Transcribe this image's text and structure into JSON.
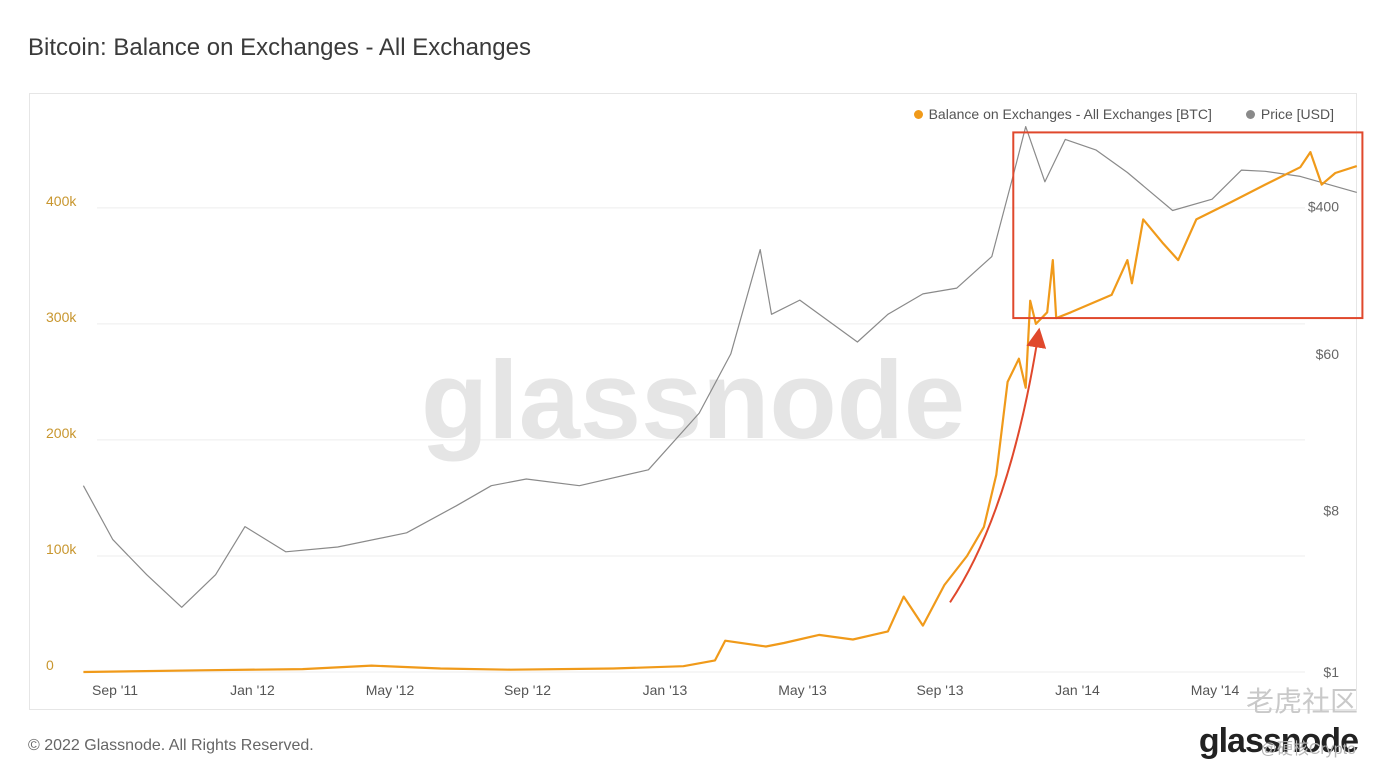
{
  "header": {
    "title": "Bitcoin: Balance on Exchanges - All Exchanges"
  },
  "footer": {
    "copyright": "© 2022 Glassnode. All Rights Reserved.",
    "brand": "glassnode"
  },
  "watermark": {
    "text": "glassnode",
    "overlay": "老虎社区",
    "handle": "@硬核Crypto"
  },
  "colors": {
    "balance": "#f09a1a",
    "price": "#8a8a8a",
    "highlight": "#e0482c",
    "grid": "#eeeeee"
  },
  "chart_data": {
    "type": "line",
    "title": "Bitcoin: Balance on Exchanges - All Exchanges",
    "x_ticks": [
      "Sep '11",
      "Jan '12",
      "May '12",
      "Sep '12",
      "Jan '13",
      "May '13",
      "Sep '13",
      "Jan '14",
      "May '14"
    ],
    "y_left": {
      "ticks": [
        "0",
        "100k",
        "200k",
        "300k",
        "400k"
      ],
      "min": 0,
      "max": 480000
    },
    "y_right": {
      "ticks": [
        "$1",
        "$8",
        "$60",
        "$400"
      ],
      "scale": "log",
      "min": 1,
      "max": 1300
    },
    "legend_position": "top-right",
    "grid": true,
    "series": [
      {
        "name": "Balance on Exchanges - All Exchanges [BTC]",
        "axis": "left",
        "points": [
          [
            "2011-08-20",
            0
          ],
          [
            "2011-12-01",
            1500
          ],
          [
            "2012-03-01",
            2500
          ],
          [
            "2012-05-01",
            5500
          ],
          [
            "2012-07-01",
            3000
          ],
          [
            "2012-09-01",
            2000
          ],
          [
            "2012-12-01",
            3000
          ],
          [
            "2013-02-01",
            5000
          ],
          [
            "2013-03-01",
            10000
          ],
          [
            "2013-03-10",
            27000
          ],
          [
            "2013-04-15",
            22000
          ],
          [
            "2013-05-01",
            25000
          ],
          [
            "2013-06-01",
            32000
          ],
          [
            "2013-07-01",
            28000
          ],
          [
            "2013-08-01",
            35000
          ],
          [
            "2013-08-15",
            65000
          ],
          [
            "2013-09-01",
            40000
          ],
          [
            "2013-09-20",
            75000
          ],
          [
            "2013-10-10",
            100000
          ],
          [
            "2013-10-25",
            125000
          ],
          [
            "2013-11-05",
            170000
          ],
          [
            "2013-11-15",
            250000
          ],
          [
            "2013-11-25",
            270000
          ],
          [
            "2013-12-01",
            245000
          ],
          [
            "2013-12-05",
            320000
          ],
          [
            "2013-12-10",
            300000
          ],
          [
            "2013-12-20",
            310000
          ],
          [
            "2013-12-25",
            355000
          ],
          [
            "2013-12-28",
            305000
          ],
          [
            "2014-01-10",
            310000
          ],
          [
            "2014-02-15",
            325000
          ],
          [
            "2014-03-01",
            355000
          ],
          [
            "2014-03-05",
            335000
          ],
          [
            "2014-03-15",
            390000
          ],
          [
            "2014-04-01",
            370000
          ],
          [
            "2014-04-15",
            355000
          ],
          [
            "2014-05-01",
            390000
          ],
          [
            "2014-06-01",
            405000
          ],
          [
            "2014-07-01",
            420000
          ],
          [
            "2014-08-01",
            435000
          ],
          [
            "2014-08-10",
            448000
          ],
          [
            "2014-08-20",
            420000
          ],
          [
            "2014-09-01",
            430000
          ],
          [
            "2014-09-20",
            436000
          ]
        ]
      },
      {
        "name": "Price [USD]",
        "axis": "right",
        "points": [
          [
            "2011-08-20",
            11
          ],
          [
            "2011-09-15",
            5.5
          ],
          [
            "2011-10-15",
            3.5
          ],
          [
            "2011-11-15",
            2.3
          ],
          [
            "2011-12-15",
            3.5
          ],
          [
            "2012-01-10",
            6.5
          ],
          [
            "2012-02-15",
            4.7
          ],
          [
            "2012-04-01",
            5
          ],
          [
            "2012-06-01",
            6
          ],
          [
            "2012-07-15",
            8.5
          ],
          [
            "2012-08-15",
            11
          ],
          [
            "2012-09-15",
            12
          ],
          [
            "2012-11-01",
            11
          ],
          [
            "2013-01-01",
            13.5
          ],
          [
            "2013-02-15",
            28
          ],
          [
            "2013-03-15",
            60
          ],
          [
            "2013-04-10",
            230
          ],
          [
            "2013-04-20",
            100
          ],
          [
            "2013-05-15",
            120
          ],
          [
            "2013-07-05",
            70
          ],
          [
            "2013-08-01",
            100
          ],
          [
            "2013-09-01",
            130
          ],
          [
            "2013-10-01",
            140
          ],
          [
            "2013-11-01",
            210
          ],
          [
            "2013-11-20",
            600
          ],
          [
            "2013-12-01",
            1120
          ],
          [
            "2013-12-18",
            550
          ],
          [
            "2014-01-05",
            950
          ],
          [
            "2014-02-01",
            830
          ],
          [
            "2014-03-01",
            620
          ],
          [
            "2014-04-10",
            380
          ],
          [
            "2014-05-15",
            440
          ],
          [
            "2014-06-10",
            640
          ],
          [
            "2014-07-01",
            630
          ],
          [
            "2014-08-01",
            590
          ],
          [
            "2014-09-20",
            480
          ]
        ]
      }
    ],
    "annotations": [
      {
        "type": "box",
        "label": "",
        "x_range": [
          "2013-11-20",
          "2014-09-25"
        ],
        "y_left_range": [
          305000,
          465000
        ]
      },
      {
        "type": "arrow",
        "label": "",
        "from": [
          "2013-09-25",
          60000
        ],
        "to": [
          "2013-12-12",
          290000
        ]
      }
    ]
  }
}
